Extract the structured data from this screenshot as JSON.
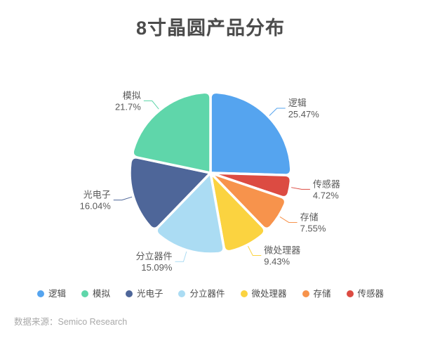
{
  "title": "8寸晶圆产品分布",
  "source": "数据来源：Semico Research",
  "legend": {
    "position": "bottom",
    "items": [
      "逻辑",
      "模拟",
      "光电子",
      "分立器件",
      "微处理器",
      "存储",
      "传感器"
    ]
  },
  "chart_data": {
    "type": "pie",
    "title": "8寸晶圆产品分布",
    "start_angle_deg": 0,
    "direction": "clockwise",
    "legend_position": "bottom",
    "total": 100,
    "slices": [
      {
        "name": "逻辑",
        "value": 25.47,
        "label": "25.47%",
        "color": "#55a4ef"
      },
      {
        "name": "传感器",
        "value": 4.72,
        "label": "4.72%",
        "color": "#dc4b42"
      },
      {
        "name": "存储",
        "value": 7.55,
        "label": "7.55%",
        "color": "#f7934c"
      },
      {
        "name": "微处理器",
        "value": 9.43,
        "label": "9.43%",
        "color": "#fbd340"
      },
      {
        "name": "分立器件",
        "value": 15.09,
        "label": "15.09%",
        "color": "#abdcf3"
      },
      {
        "name": "光电子",
        "value": 16.04,
        "label": "16.04%",
        "color": "#4e6699"
      },
      {
        "name": "模拟",
        "value": 21.7,
        "label": "21.7%",
        "color": "#5fd6aa"
      }
    ]
  }
}
